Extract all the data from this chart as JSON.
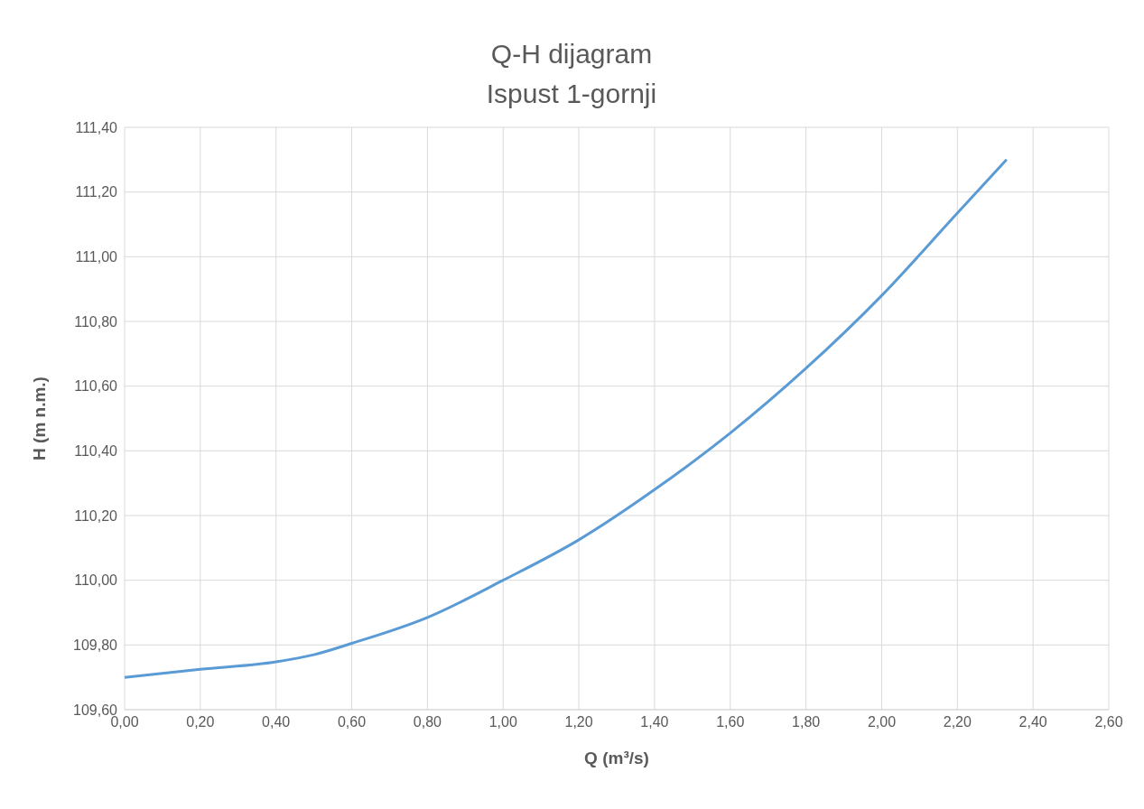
{
  "chart_data": {
    "type": "line",
    "title": "Q-H dijagram\nIspust 1-gornji",
    "xlabel": "Q (m³/s)",
    "ylabel": "H (m n.m.)",
    "x": [
      0,
      0.2,
      0.4,
      0.5,
      0.6,
      0.8,
      1.0,
      1.2,
      1.4,
      1.6,
      1.8,
      2.0,
      2.2,
      2.33
    ],
    "series": [
      {
        "color": "#5b9bd5",
        "values": [
          109.7,
          109.725,
          109.748,
          109.77,
          109.805,
          109.885,
          110.0,
          110.125,
          110.28,
          110.455,
          110.655,
          110.88,
          111.135,
          111.3
        ]
      }
    ],
    "xlim": [
      0,
      2.6
    ],
    "ylim": [
      109.6,
      111.4
    ],
    "xticks": [
      {
        "value": 0,
        "label": "0,00"
      },
      {
        "value": 0.2,
        "label": "0,20"
      },
      {
        "value": 0.4,
        "label": "0,40"
      },
      {
        "value": 0.6,
        "label": "0,60"
      },
      {
        "value": 0.8,
        "label": "0,80"
      },
      {
        "value": 1.0,
        "label": "1,00"
      },
      {
        "value": 1.2,
        "label": "1,20"
      },
      {
        "value": 1.4,
        "label": "1,40"
      },
      {
        "value": 1.6,
        "label": "1,60"
      },
      {
        "value": 1.8,
        "label": "1,80"
      },
      {
        "value": 2.0,
        "label": "2,00"
      },
      {
        "value": 2.2,
        "label": "2,20"
      },
      {
        "value": 2.4,
        "label": "2,40"
      },
      {
        "value": 2.6,
        "label": "2,60"
      }
    ],
    "yticks": [
      {
        "value": 109.6,
        "label": "109,60"
      },
      {
        "value": 109.8,
        "label": "109,80"
      },
      {
        "value": 110.0,
        "label": "110,00"
      },
      {
        "value": 110.2,
        "label": "110,20"
      },
      {
        "value": 110.4,
        "label": "110,40"
      },
      {
        "value": 110.6,
        "label": "110,60"
      },
      {
        "value": 110.8,
        "label": "110,80"
      },
      {
        "value": 111.0,
        "label": "111,00"
      },
      {
        "value": 111.2,
        "label": "111,20"
      },
      {
        "value": 111.4,
        "label": "111,40"
      }
    ],
    "grid": true,
    "marker": "none",
    "line_style": "solid"
  }
}
